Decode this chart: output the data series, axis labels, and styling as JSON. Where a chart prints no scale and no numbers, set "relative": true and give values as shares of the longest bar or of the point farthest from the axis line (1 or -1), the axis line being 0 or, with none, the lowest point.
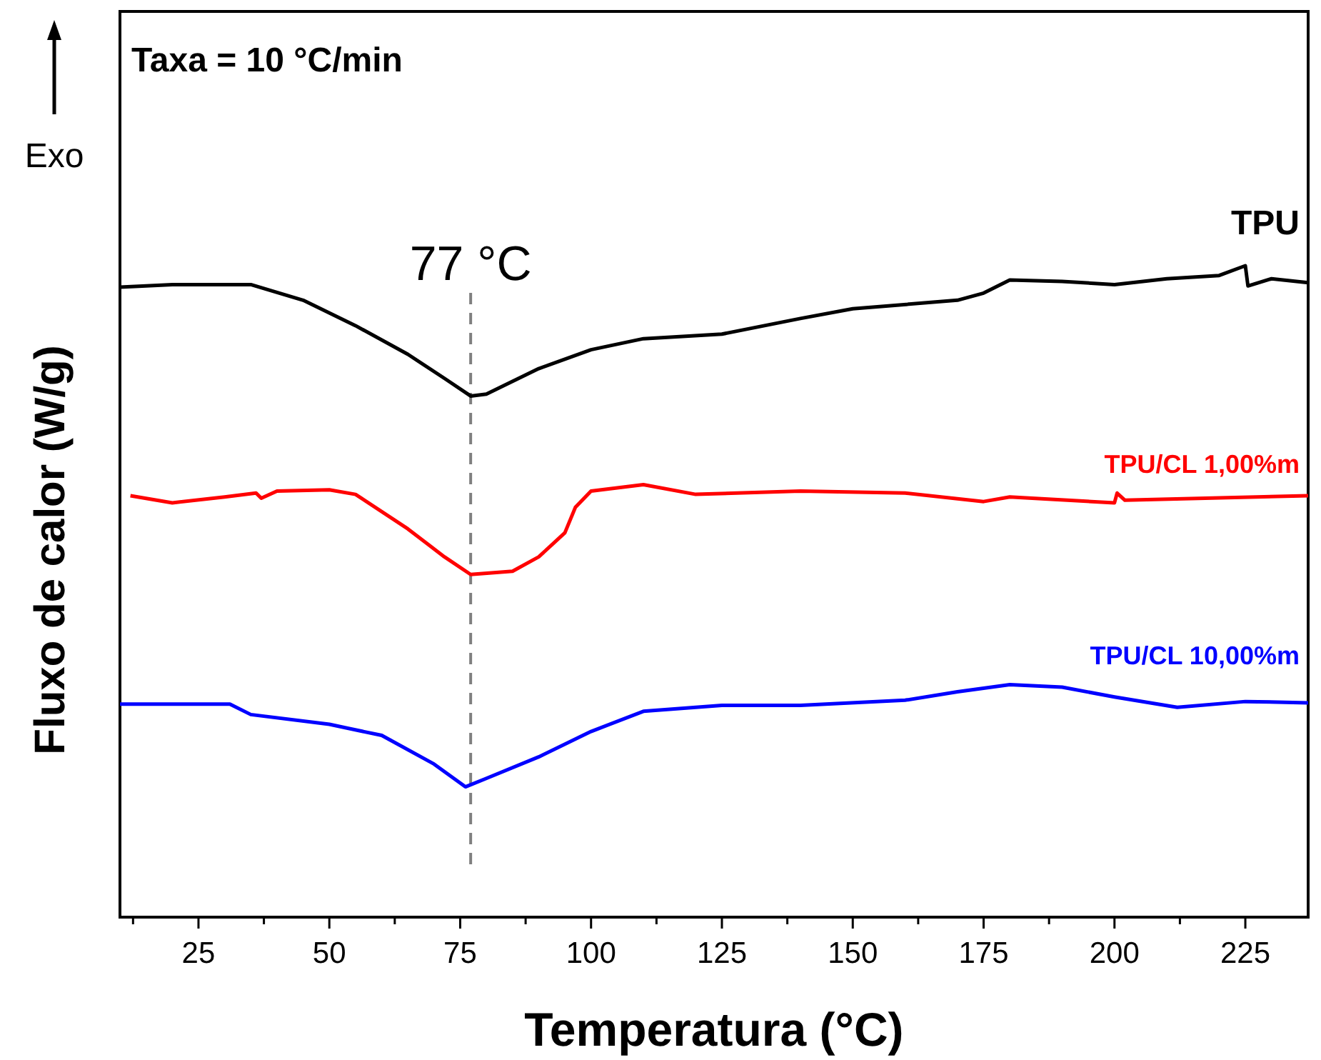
{
  "chart_data": {
    "type": "line",
    "relative": true,
    "xlabel": "Temperatura (°C)",
    "ylabel": "Fluxo de calor (W/g)",
    "xlim": [
      10,
      237
    ],
    "xticks": [
      {
        "value": 12.5,
        "label": null
      },
      25,
      {
        "value": 37.5,
        "label": null
      },
      50,
      {
        "value": 62.5,
        "label": null
      },
      75,
      {
        "value": 87.5,
        "label": null
      },
      100,
      {
        "value": 112.5,
        "label": null
      },
      125,
      {
        "value": 137.5,
        "label": null
      },
      150,
      {
        "value": 162.5,
        "label": null
      },
      175,
      {
        "value": 187.5,
        "label": null
      },
      200,
      {
        "value": 212.5,
        "label": null
      },
      225
    ],
    "legend": false,
    "grid": false,
    "marker": "none",
    "line_style": "solid",
    "annotations": [
      "Taxa = 10 °C/min",
      "Exo"
    ],
    "ref_lines": [
      {
        "axis": "x",
        "value": 77,
        "label": "77 °C",
        "color": "#808080",
        "line_style": "dashed"
      }
    ],
    "series": [
      {
        "name": "TPU",
        "color": "#000000",
        "x": [
          10,
          20,
          35,
          45,
          55,
          65,
          72,
          77,
          80,
          90,
          100,
          110,
          125,
          140,
          150,
          170,
          175,
          180,
          190,
          200,
          210,
          220,
          225,
          225.5,
          230,
          237
        ],
        "values": [
          0.967,
          0.971,
          0.971,
          0.947,
          0.908,
          0.864,
          0.827,
          0.8,
          0.803,
          0.842,
          0.871,
          0.888,
          0.895,
          0.919,
          0.934,
          0.947,
          0.958,
          0.978,
          0.976,
          0.971,
          0.98,
          0.985,
          1.0,
          0.969,
          0.98,
          0.974
        ]
      },
      {
        "name": "TPU/CL 1,00%m",
        "color": "#ff0000",
        "x": [
          12,
          20,
          30,
          36,
          37,
          40,
          50,
          55,
          65,
          72,
          77,
          85,
          90,
          95,
          97,
          100,
          110,
          120,
          140,
          160,
          175,
          180,
          200,
          200.5,
          202,
          237
        ],
        "values": [
          0.647,
          0.636,
          0.645,
          0.651,
          0.643,
          0.654,
          0.656,
          0.649,
          0.596,
          0.553,
          0.526,
          0.531,
          0.553,
          0.59,
          0.629,
          0.654,
          0.664,
          0.649,
          0.654,
          0.651,
          0.638,
          0.645,
          0.636,
          0.651,
          0.64,
          0.647
        ]
      },
      {
        "name": "TPU/CL 10,00%m",
        "color": "#0000ff",
        "x": [
          10,
          31,
          35,
          50,
          60,
          70,
          76,
          80,
          90,
          100,
          110,
          125,
          140,
          160,
          170,
          180,
          190,
          200,
          212,
          225,
          237
        ],
        "values": [
          0.327,
          0.327,
          0.311,
          0.296,
          0.279,
          0.235,
          0.2,
          0.213,
          0.246,
          0.285,
          0.316,
          0.325,
          0.325,
          0.333,
          0.346,
          0.357,
          0.353,
          0.338,
          0.322,
          0.331,
          0.329
        ]
      }
    ]
  }
}
